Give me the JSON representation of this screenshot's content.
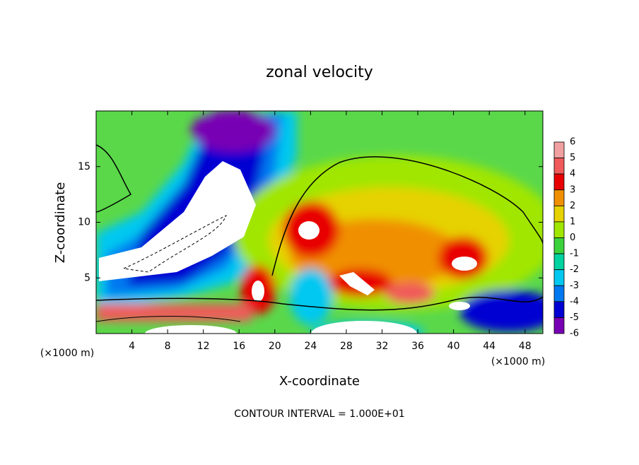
{
  "chart_data": {
    "type": "contour",
    "title": "zonal velocity",
    "x_label": "X-coordinate",
    "y_label": "Z-coordinate",
    "x_unit": "(×1000 m)",
    "y_unit": "(×1000 m)",
    "footer": "CONTOUR INTERVAL = 1.000E+01",
    "xlim": [
      0,
      50
    ],
    "xticks": [
      4,
      8,
      12,
      16,
      20,
      24,
      28,
      32,
      36,
      40,
      44,
      48
    ],
    "ylim": [
      0,
      20
    ],
    "yticks": [
      5,
      10,
      15
    ],
    "colorbar": {
      "levels": [
        6,
        5,
        4,
        3,
        2,
        1,
        0,
        -1,
        -2,
        -3,
        -4,
        -5,
        -6
      ],
      "colors": [
        "#f0a0a0",
        "#f05a5a",
        "#e80000",
        "#f09000",
        "#e6d200",
        "#a0e600",
        "#3cd23c",
        "#00d2a0",
        "#00c8f0",
        "#0078f0",
        "#0000d2",
        "#7800b4"
      ]
    }
  }
}
